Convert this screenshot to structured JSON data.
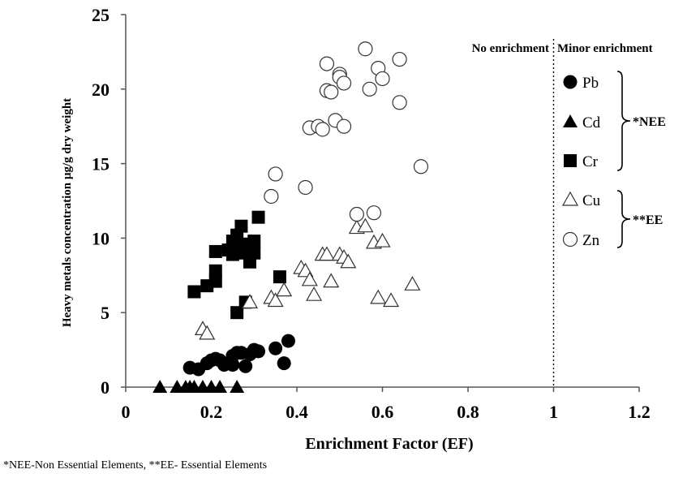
{
  "chart_data": {
    "type": "scatter",
    "xlabel": "Enrichment Factor (EF)",
    "ylabel": "Heavy metals concentration µg/g dry weight",
    "xlim": [
      0,
      1.2
    ],
    "ylim": [
      0,
      25
    ],
    "xticks": [
      "0",
      "0.2",
      "0.4",
      "0.6",
      "0.8",
      "1",
      "1.2"
    ],
    "yticks": [
      "0",
      "5",
      "10",
      "15",
      "20",
      "25"
    ],
    "grid": false,
    "reference_line": {
      "x": 1,
      "style": "dotted"
    },
    "region_labels": {
      "left": "No enrichment",
      "right": "Minor enrichment"
    },
    "legend_groups": [
      {
        "label": "*NEE",
        "members": [
          "Pb",
          "Cd",
          "Cr"
        ]
      },
      {
        "label": "**EE",
        "members": [
          "Cu",
          "Zn"
        ]
      }
    ],
    "series": [
      {
        "name": "Pb",
        "marker": "filled-circle",
        "points": [
          [
            0.15,
            1.3
          ],
          [
            0.17,
            1.2
          ],
          [
            0.19,
            1.6
          ],
          [
            0.2,
            1.8
          ],
          [
            0.21,
            1.9
          ],
          [
            0.22,
            1.8
          ],
          [
            0.23,
            1.5
          ],
          [
            0.25,
            2.1
          ],
          [
            0.25,
            1.5
          ],
          [
            0.26,
            2.3
          ],
          [
            0.27,
            2.3
          ],
          [
            0.28,
            1.4
          ],
          [
            0.29,
            2.2
          ],
          [
            0.3,
            2.5
          ],
          [
            0.31,
            2.4
          ],
          [
            0.35,
            2.6
          ],
          [
            0.37,
            1.6
          ],
          [
            0.38,
            3.1
          ]
        ]
      },
      {
        "name": "Cd",
        "marker": "filled-triangle",
        "points": [
          [
            0.08,
            0
          ],
          [
            0.12,
            0
          ],
          [
            0.14,
            0
          ],
          [
            0.15,
            0
          ],
          [
            0.16,
            0
          ],
          [
            0.18,
            0
          ],
          [
            0.2,
            0
          ],
          [
            0.22,
            0
          ],
          [
            0.26,
            0
          ]
        ]
      },
      {
        "name": "Cr",
        "marker": "filled-square",
        "points": [
          [
            0.16,
            6.4
          ],
          [
            0.19,
            6.8
          ],
          [
            0.21,
            7.1
          ],
          [
            0.21,
            7.8
          ],
          [
            0.21,
            9.1
          ],
          [
            0.24,
            9.2
          ],
          [
            0.25,
            9.8
          ],
          [
            0.25,
            8.9
          ],
          [
            0.26,
            10.2
          ],
          [
            0.26,
            9.4
          ],
          [
            0.26,
            5.0
          ],
          [
            0.27,
            10.8
          ],
          [
            0.27,
            9.0
          ],
          [
            0.28,
            5.7
          ],
          [
            0.28,
            9.6
          ],
          [
            0.29,
            8.4
          ],
          [
            0.3,
            9.8
          ],
          [
            0.3,
            9.0
          ],
          [
            0.31,
            11.4
          ],
          [
            0.36,
            7.4
          ]
        ]
      },
      {
        "name": "Cu",
        "marker": "open-triangle",
        "points": [
          [
            0.18,
            3.9
          ],
          [
            0.19,
            3.6
          ],
          [
            0.29,
            5.7
          ],
          [
            0.34,
            6.0
          ],
          [
            0.35,
            5.8
          ],
          [
            0.37,
            6.5
          ],
          [
            0.41,
            8.0
          ],
          [
            0.42,
            7.8
          ],
          [
            0.43,
            7.2
          ],
          [
            0.44,
            6.2
          ],
          [
            0.46,
            8.9
          ],
          [
            0.47,
            8.9
          ],
          [
            0.48,
            7.1
          ],
          [
            0.5,
            8.9
          ],
          [
            0.51,
            8.7
          ],
          [
            0.52,
            8.4
          ],
          [
            0.54,
            10.7
          ],
          [
            0.56,
            10.8
          ],
          [
            0.58,
            9.7
          ],
          [
            0.59,
            6.0
          ],
          [
            0.6,
            9.8
          ],
          [
            0.62,
            5.8
          ],
          [
            0.67,
            6.9
          ]
        ]
      },
      {
        "name": "Zn",
        "marker": "open-circle",
        "points": [
          [
            0.34,
            12.8
          ],
          [
            0.35,
            14.3
          ],
          [
            0.42,
            13.4
          ],
          [
            0.43,
            17.4
          ],
          [
            0.45,
            17.5
          ],
          [
            0.46,
            17.3
          ],
          [
            0.47,
            21.7
          ],
          [
            0.47,
            19.9
          ],
          [
            0.48,
            19.8
          ],
          [
            0.49,
            17.9
          ],
          [
            0.5,
            21.0
          ],
          [
            0.5,
            20.8
          ],
          [
            0.51,
            20.4
          ],
          [
            0.51,
            17.5
          ],
          [
            0.54,
            11.6
          ],
          [
            0.56,
            22.7
          ],
          [
            0.57,
            20.0
          ],
          [
            0.58,
            11.7
          ],
          [
            0.59,
            21.4
          ],
          [
            0.6,
            20.7
          ],
          [
            0.64,
            22.0
          ],
          [
            0.64,
            19.1
          ],
          [
            0.69,
            14.8
          ]
        ]
      }
    ]
  },
  "footnote": "*NEE-Non Essential Elements, **EE- Essential Elements"
}
